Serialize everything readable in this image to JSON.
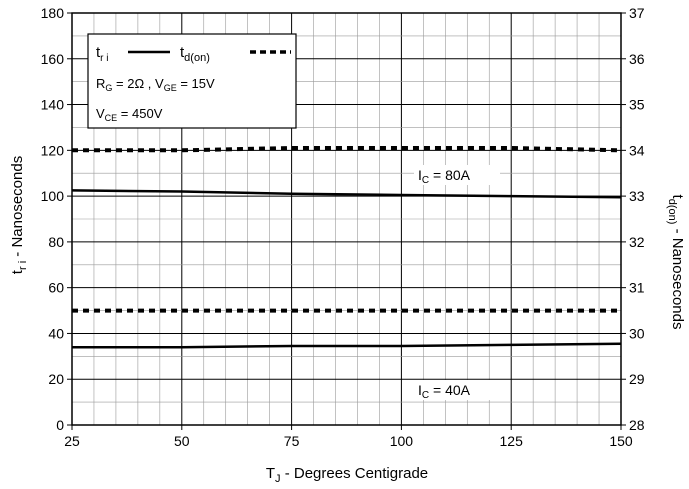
{
  "chart_data": {
    "type": "line",
    "title": "",
    "xlabel_base": "T",
    "xlabel_sub": "J",
    "xlabel_rest": " - Degrees Centigrade",
    "ylabel_left_base": "t",
    "ylabel_left_sub": "r i",
    "ylabel_left_rest": " - Nanoseconds",
    "ylabel_right_base": "t",
    "ylabel_right_sub": "d(on)",
    "ylabel_right_rest": " - Nanoseconds",
    "xlim": [
      25,
      150
    ],
    "ylim_left": [
      0,
      180
    ],
    "ylim_right": [
      28,
      37
    ],
    "x_ticks": [
      "25",
      "50",
      "75",
      "100",
      "125",
      "150"
    ],
    "y_left_ticks": [
      "0",
      "20",
      "40",
      "60",
      "80",
      "100",
      "120",
      "140",
      "160",
      "180"
    ],
    "y_right_ticks": [
      "28",
      "29",
      "30",
      "31",
      "32",
      "33",
      "34",
      "35",
      "36",
      "37"
    ],
    "grid": true,
    "legend": {
      "tri_base": "t",
      "tri_sub": "r i",
      "tdon_base": "t",
      "tdon_sub": "d(on)",
      "cond1": "R",
      "cond1_sub": "G",
      "cond1_rest": " = 2Ω ,  V",
      "cond1_sub2": "GE",
      "cond1_rest2": " = 15V",
      "cond2": "V",
      "cond2_sub": "CE",
      "cond2_rest": " = 450V"
    },
    "annotations": {
      "ic80_base": "I",
      "ic80_sub": "C",
      "ic80_rest": " = 80A",
      "ic40_base": "I",
      "ic40_sub": "C",
      "ic40_rest": " = 40A"
    },
    "series": [
      {
        "name": "t r i",
        "condition": "I C = 80A",
        "axis": "left",
        "style": "solid",
        "x": [
          25,
          50,
          75,
          100,
          125,
          150
        ],
        "y": [
          102.5,
          102,
          101,
          100.5,
          100,
          99.5
        ]
      },
      {
        "name": "t d(on)",
        "condition": "I C = 80A",
        "axis": "right",
        "style": "dashed",
        "x": [
          25,
          50,
          75,
          100,
          125,
          150
        ],
        "y": [
          34.0,
          34.0,
          34.05,
          34.05,
          34.05,
          34.0
        ]
      },
      {
        "name": "t r i",
        "condition": "I C = 40A",
        "axis": "left",
        "style": "solid",
        "x": [
          25,
          50,
          75,
          100,
          125,
          150
        ],
        "y": [
          34,
          34,
          34.5,
          34.5,
          35,
          35.5
        ]
      },
      {
        "name": "t d(on)",
        "condition": "I C = 40A",
        "axis": "right",
        "style": "dashed",
        "x": [
          25,
          50,
          75,
          100,
          125,
          150
        ],
        "y": [
          30.5,
          30.5,
          30.5,
          30.5,
          30.5,
          30.5
        ]
      }
    ]
  }
}
